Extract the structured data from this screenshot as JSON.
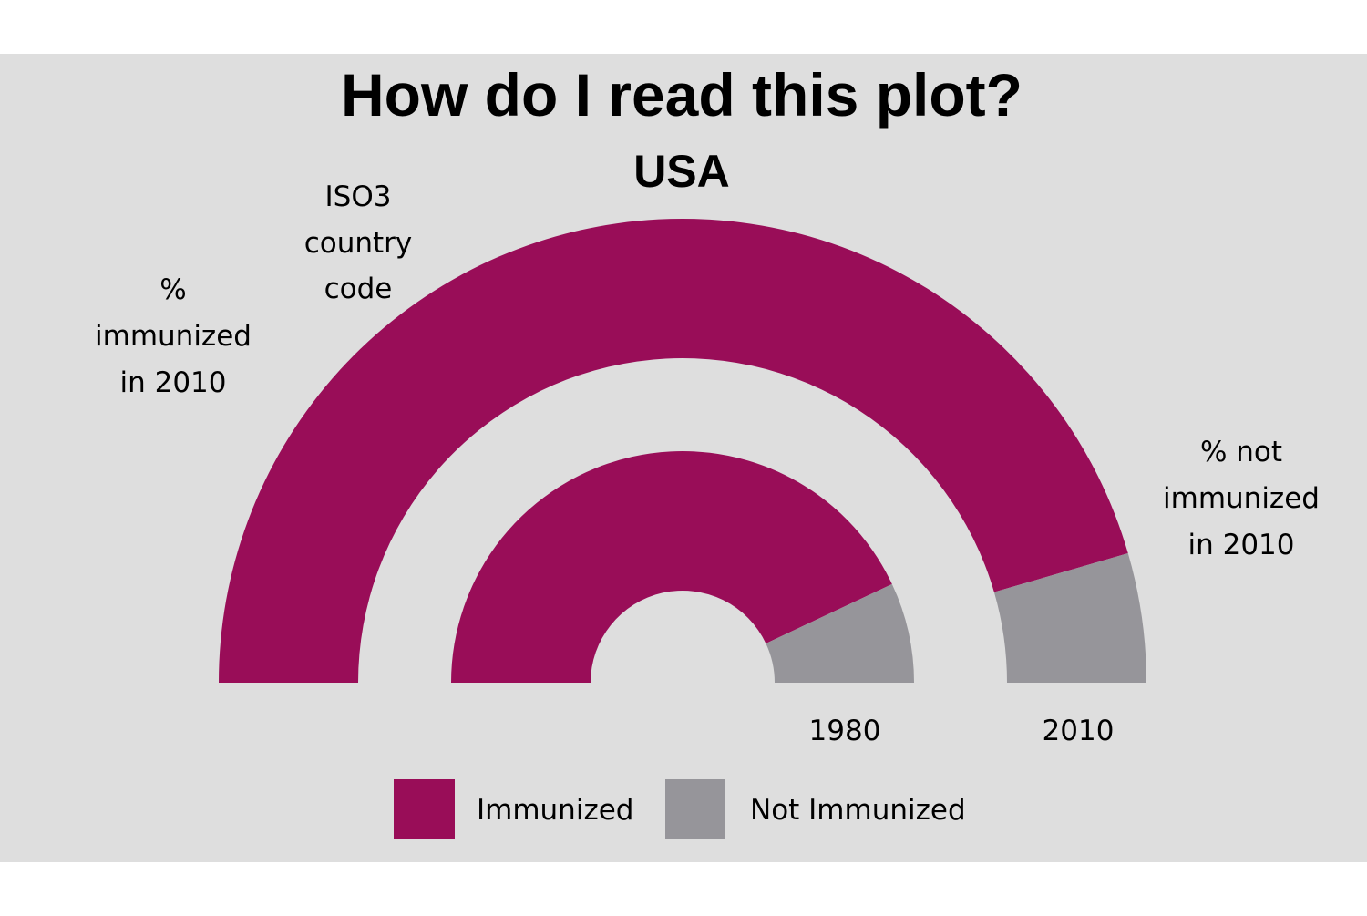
{
  "colors": {
    "background": "#dedede",
    "immunized": "#990d58",
    "not_immunized": "#96959a"
  },
  "chart_data": {
    "type": "donut",
    "title": "How do I read this plot?",
    "subtitle": "USA",
    "rings": [
      {
        "label": "1980",
        "immunized": 86,
        "not_immunized": 14
      },
      {
        "label": "2010",
        "immunized": 91,
        "not_immunized": 9
      }
    ],
    "annotations": {
      "immunized": [
        "%",
        "immunized",
        "in 2010"
      ],
      "country_code": [
        "ISO3",
        "country",
        "code"
      ],
      "not_immunized": [
        "% not",
        "immunized",
        "in 2010"
      ]
    },
    "legend": {
      "position": "bottom",
      "items": [
        {
          "key": "immunized",
          "label": "Immunized"
        },
        {
          "key": "not_immunized",
          "label": "Not Immunized"
        }
      ]
    }
  }
}
